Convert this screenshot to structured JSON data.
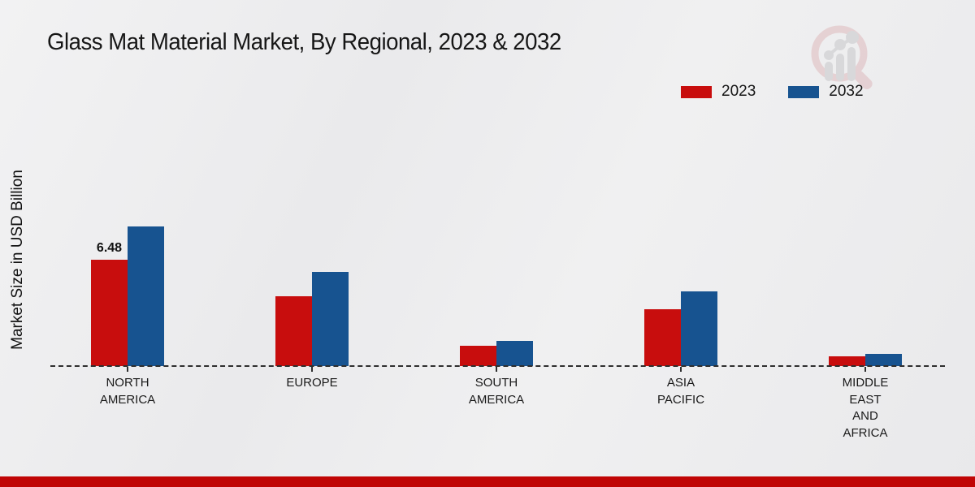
{
  "page": {
    "title": "Glass Mat Material Market, By Regional, 2023 & 2032"
  },
  "ylabel": "Market Size in USD Billion",
  "legend": {
    "position": "top-right",
    "items": [
      {
        "label": "2023",
        "color": "#c80d0d"
      },
      {
        "label": "2032",
        "color": "#175390"
      }
    ]
  },
  "chart_data": {
    "type": "bar",
    "title": "Glass Mat Material Market, By Regional, 2023 & 2032",
    "xlabel": "",
    "ylabel": "Market Size in USD Billion",
    "categories": [
      "NORTH AMERICA",
      "EUROPE",
      "SOUTH AMERICA",
      "ASIA PACIFIC",
      "MIDDLE EAST AND AFRICA"
    ],
    "category_display_lines": [
      [
        "NORTH",
        "AMERICA"
      ],
      [
        "EUROPE"
      ],
      [
        "SOUTH",
        "AMERICA"
      ],
      [
        "ASIA",
        "PACIFIC"
      ],
      [
        "MIDDLE",
        "EAST",
        "AND",
        "AFRICA"
      ]
    ],
    "series": [
      {
        "name": "2023",
        "color": "#c80d0d",
        "values": [
          6.48,
          4.27,
          1.24,
          3.46,
          0.59
        ]
      },
      {
        "name": "2032",
        "color": "#175390",
        "values": [
          8.51,
          5.72,
          1.53,
          4.55,
          0.74
        ]
      }
    ],
    "data_labels": [
      {
        "series_index": 0,
        "category_index": 0,
        "text": "6.48"
      }
    ],
    "ylim": [
      0,
      9.5
    ],
    "grid": false,
    "legend_position": "top-right",
    "baseline_style": "dashed"
  },
  "decorations": {
    "footer_band_color": "#c00505",
    "watermark_icon": "magnifier-bar-chart-logo"
  }
}
